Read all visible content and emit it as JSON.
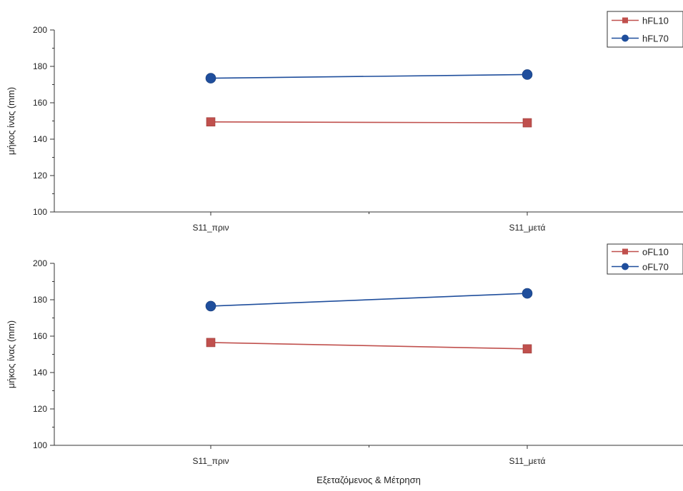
{
  "figure": {
    "xlabel": "Εξεταζόμενος & Μέτρηση"
  },
  "colors": {
    "series_red": "#c0504d",
    "series_blue": "#1f4e9c",
    "axis": "#333333"
  },
  "chart_data": [
    {
      "type": "line",
      "title": "",
      "xlabel": "",
      "ylabel": "μήκος ίνας (mm)",
      "categories": [
        "S11_πριν",
        "S11_μετά"
      ],
      "ylim": [
        100,
        200
      ],
      "yticks": [
        100,
        120,
        140,
        160,
        180,
        200
      ],
      "grid": false,
      "legend": "top-right",
      "series": [
        {
          "name": "hFL10",
          "values": [
            149.5,
            149
          ],
          "color": "#c0504d",
          "marker": "square"
        },
        {
          "name": "hFL70",
          "values": [
            173.5,
            175.5
          ],
          "color": "#1f4e9c",
          "marker": "circle"
        }
      ]
    },
    {
      "type": "line",
      "title": "",
      "xlabel": "Εξεταζόμενος & Μέτρηση",
      "ylabel": "μήκος ίνας (mm)",
      "categories": [
        "S11_πριν",
        "S11_μετά"
      ],
      "ylim": [
        100,
        200
      ],
      "yticks": [
        100,
        120,
        140,
        160,
        180,
        200
      ],
      "grid": false,
      "legend": "top-right",
      "series": [
        {
          "name": "oFL10",
          "values": [
            156.5,
            153
          ],
          "color": "#c0504d",
          "marker": "square"
        },
        {
          "name": "oFL70",
          "values": [
            176.5,
            183.5
          ],
          "color": "#1f4e9c",
          "marker": "circle"
        }
      ]
    }
  ]
}
